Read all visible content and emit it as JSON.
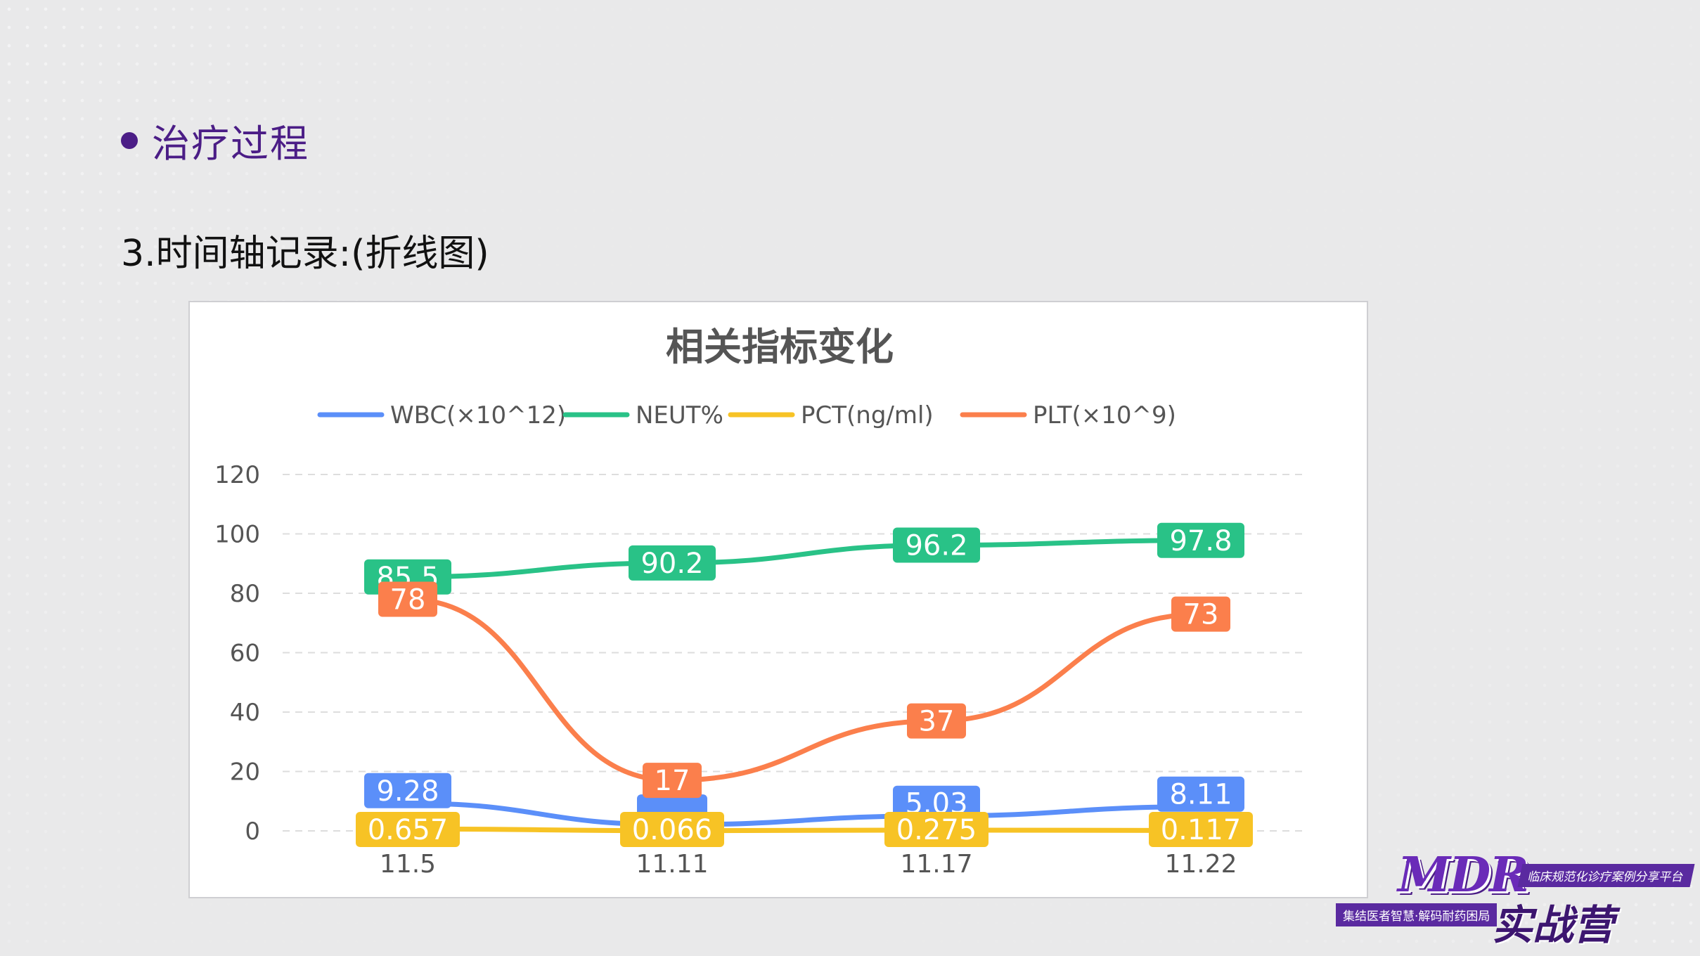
{
  "section": {
    "bullet_title": "治疗过程"
  },
  "subtitle": "3.时间轴记录:(折线图)",
  "logo": {
    "brand": "MDR",
    "tagline": "临床规范化诊疗案例分享平台",
    "slogan": "集结医者智慧·解码耐药困局",
    "name": "实战营"
  },
  "chart_data": {
    "type": "line",
    "title": "相关指标变化",
    "xlabel": "",
    "ylabel": "",
    "ylim": [
      0,
      120
    ],
    "yticks": [
      0,
      20,
      40,
      60,
      80,
      100,
      120
    ],
    "grid": true,
    "legend_position": "top",
    "categories": [
      "11.5",
      "11.11",
      "11.17",
      "11.22"
    ],
    "series": [
      {
        "name": "WBC(×10^12)",
        "color": "#5b8ff9",
        "values": [
          9.28,
          2.1,
          5.03,
          8.11
        ],
        "labels": [
          "9.28",
          "",
          "5.03",
          "8.11"
        ]
      },
      {
        "name": "NEUT%",
        "color": "#29c287",
        "values": [
          85.5,
          90.2,
          96.2,
          97.8
        ],
        "labels": [
          "85.5",
          "90.2",
          "96.2",
          "97.8"
        ]
      },
      {
        "name": "PCT(ng/ml)",
        "color": "#f7c325",
        "values": [
          0.657,
          0.066,
          0.275,
          0.117
        ],
        "labels": [
          "0.657",
          "0.066",
          "0.275",
          "0.117"
        ]
      },
      {
        "name": "PLT(×10^9)",
        "color": "#fb7f4c",
        "values": [
          78,
          17,
          37,
          73
        ],
        "labels": [
          "78",
          "17",
          "37",
          "73"
        ]
      }
    ]
  }
}
